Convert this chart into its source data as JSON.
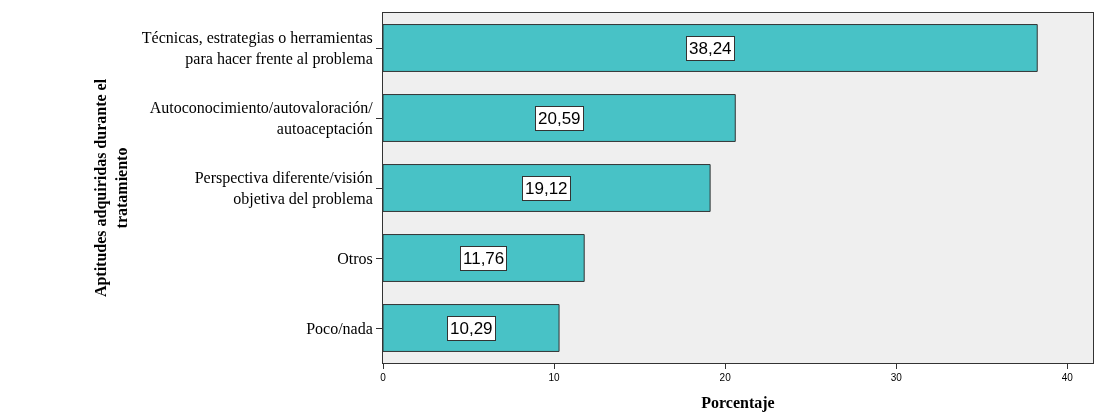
{
  "chart_data": {
    "type": "bar",
    "orientation": "horizontal",
    "categories": [
      "Técnicas, estrategias o herramientas\npara hacer frente al problema",
      "Autoconocimiento/autovaloración/\nautoaceptación",
      "Perspectiva diferente/visión\nobjetiva del problema",
      "Otros",
      "Poco/nada"
    ],
    "values": [
      38.24,
      20.59,
      19.12,
      11.76,
      10.29
    ],
    "value_labels": [
      "38,24",
      "20,59",
      "19,12",
      "11,76",
      "10,29"
    ],
    "color": "#48c2c6",
    "xlabel": "Porcentaje",
    "ylabel": "Aptitudes adquiridas durante el\ntratamiento",
    "xlim": [
      0,
      41.5
    ],
    "xticks": [
      0,
      10,
      20,
      30,
      40
    ],
    "grid": false,
    "legend": false
  }
}
